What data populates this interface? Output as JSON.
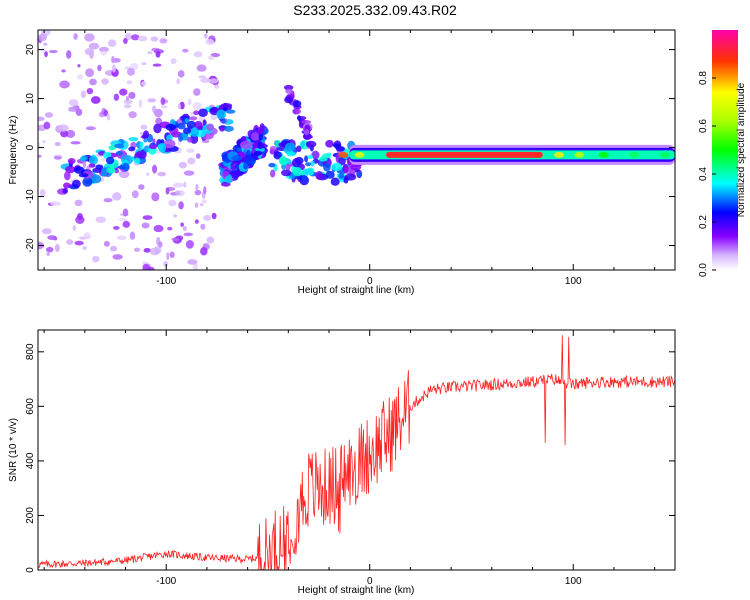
{
  "title": "S233.2025.332.09.43.R02",
  "chart_data": [
    {
      "type": "heatmap",
      "xlabel": "Height of straight line (km)",
      "ylabel": "Frequency (Hz)",
      "xlim": [
        -163,
        150
      ],
      "ylim": [
        -25,
        24
      ],
      "xticks": [
        -100,
        0,
        100
      ],
      "yticks": [
        -20,
        -10,
        0,
        10,
        20
      ],
      "colorbar": {
        "label": "Normalized spectral amplitude",
        "range": [
          0,
          1
        ],
        "ticks": [
          "0.0",
          "0.2",
          "0.4",
          "0.6",
          "0.8"
        ]
      },
      "features": [
        {
          "name": "noise-cloud",
          "x_range": [
            -163,
            -75
          ],
          "freq_range": [
            -25,
            24
          ],
          "amplitude": 0.1
        },
        {
          "name": "rising-branch",
          "x_start": -150,
          "x_end": -68,
          "freq_start": -6,
          "freq_end": 7,
          "amplitude": 0.3
        },
        {
          "name": "short-branch",
          "x_start": -72,
          "x_end": -52,
          "freq_start": -5,
          "freq_end": 2,
          "amplitude": 0.25
        },
        {
          "name": "near-zero-onset",
          "x_start": -50,
          "x_end": -5,
          "freq": -3,
          "amplitude": 0.3
        },
        {
          "name": "steady-line",
          "x_start": -10,
          "x_end": 150,
          "freq": -1.5,
          "amplitude": 1.0
        }
      ]
    },
    {
      "type": "line",
      "xlabel": "Height of straight line (km)",
      "ylabel": "SNR (10 * v/v)",
      "xlim": [
        -163,
        150
      ],
      "ylim": [
        0,
        880
      ],
      "xticks": [
        -100,
        0,
        100
      ],
      "yticks": [
        0,
        200,
        400,
        600,
        800
      ],
      "series": [
        {
          "name": "SNR",
          "color": "#ff2020",
          "x": [
            -163,
            -140,
            -120,
            -100,
            -80,
            -60,
            -50,
            -40,
            -30,
            -20,
            -10,
            0,
            10,
            20,
            30,
            40,
            60,
            80,
            90,
            100,
            110,
            120,
            150
          ],
          "y": [
            20,
            25,
            35,
            60,
            45,
            40,
            50,
            150,
            300,
            300,
            360,
            430,
            500,
            600,
            660,
            670,
            680,
            690,
            700,
            680,
            690,
            690,
            690
          ]
        }
      ]
    }
  ]
}
